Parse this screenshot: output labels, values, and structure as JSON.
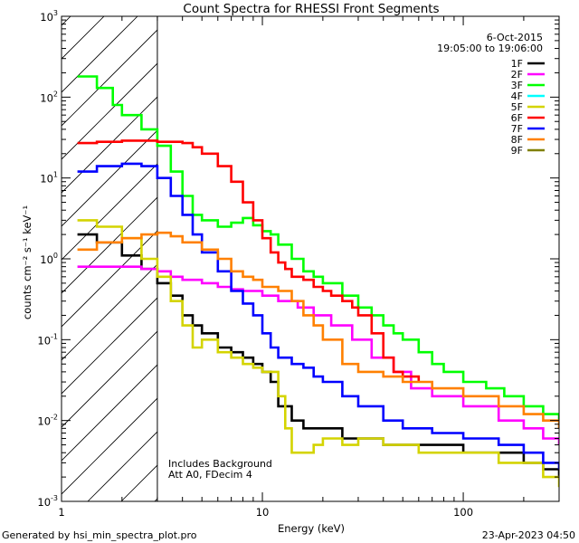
{
  "chart_data": {
    "type": "line",
    "title": "Count Spectra for RHESSI Front Segments",
    "xlabel": "Energy (keV)",
    "ylabel": "counts cm⁻² s⁻¹ keV⁻¹",
    "xscale": "log",
    "yscale": "log",
    "xlim": [
      1,
      300
    ],
    "ylim": [
      0.001,
      1000
    ],
    "x_tick_labels": [
      {
        "value": 1,
        "label": "1"
      },
      {
        "value": 10,
        "label": "10"
      },
      {
        "value": 100,
        "label": "100"
      }
    ],
    "y_tick_labels": [
      {
        "value": 0.001,
        "base": "10",
        "exp": "-3"
      },
      {
        "value": 0.01,
        "base": "10",
        "exp": "-2"
      },
      {
        "value": 0.1,
        "base": "10",
        "exp": "-1"
      },
      {
        "value": 1,
        "base": "10",
        "exp": "0"
      },
      {
        "value": 10,
        "base": "10",
        "exp": "1"
      },
      {
        "value": 100,
        "base": "10",
        "exp": "2"
      },
      {
        "value": 1000,
        "base": "10",
        "exp": "3"
      }
    ],
    "date": "6-Oct-2015",
    "time_range": "19:05:00 to 19:06:00",
    "hatched_region_max_keV": 3,
    "annotations": [
      "Includes Background",
      "Att A0, FDecim 4"
    ],
    "legend_position": "top-right",
    "series": [
      {
        "name": "1F",
        "color": "#000000",
        "points": [
          [
            1.2,
            2.0
          ],
          [
            1.5,
            1.6
          ],
          [
            2.0,
            1.1
          ],
          [
            2.5,
            0.75
          ],
          [
            3.0,
            0.5
          ],
          [
            3.5,
            0.35
          ],
          [
            4.0,
            0.2
          ],
          [
            4.5,
            0.15
          ],
          [
            5.0,
            0.12
          ],
          [
            6.0,
            0.08
          ],
          [
            7.0,
            0.07
          ],
          [
            8.0,
            0.06
          ],
          [
            9.0,
            0.05
          ],
          [
            10,
            0.04
          ],
          [
            11,
            0.03
          ],
          [
            12,
            0.015
          ],
          [
            14,
            0.01
          ],
          [
            16,
            0.008
          ],
          [
            20,
            0.008
          ],
          [
            25,
            0.006
          ],
          [
            30,
            0.006
          ],
          [
            40,
            0.005
          ],
          [
            50,
            0.005
          ],
          [
            70,
            0.005
          ],
          [
            100,
            0.004
          ],
          [
            150,
            0.004
          ],
          [
            200,
            0.003
          ],
          [
            250,
            0.0025
          ],
          [
            300,
            0.002
          ]
        ]
      },
      {
        "name": "2F",
        "color": "#ff00ff",
        "points": [
          [
            1.2,
            0.8
          ],
          [
            2.0,
            0.8
          ],
          [
            2.5,
            0.75
          ],
          [
            3.0,
            0.7
          ],
          [
            3.5,
            0.6
          ],
          [
            4.0,
            0.55
          ],
          [
            5.0,
            0.5
          ],
          [
            6.0,
            0.45
          ],
          [
            7.0,
            0.42
          ],
          [
            8.0,
            0.4
          ],
          [
            10,
            0.35
          ],
          [
            12,
            0.3
          ],
          [
            15,
            0.25
          ],
          [
            18,
            0.2
          ],
          [
            22,
            0.15
          ],
          [
            28,
            0.1
          ],
          [
            35,
            0.06
          ],
          [
            45,
            0.04
          ],
          [
            55,
            0.025
          ],
          [
            70,
            0.02
          ],
          [
            100,
            0.015
          ],
          [
            150,
            0.01
          ],
          [
            200,
            0.008
          ],
          [
            250,
            0.006
          ],
          [
            300,
            0.005
          ]
        ]
      },
      {
        "name": "3F",
        "color": "#00ff00",
        "points": [
          [
            1.2,
            180
          ],
          [
            1.5,
            130
          ],
          [
            1.8,
            80
          ],
          [
            2.0,
            60
          ],
          [
            2.5,
            40
          ],
          [
            3.0,
            25
          ],
          [
            3.5,
            12
          ],
          [
            4.0,
            6
          ],
          [
            4.5,
            3.5
          ],
          [
            5.0,
            3
          ],
          [
            6.0,
            2.5
          ],
          [
            7.0,
            2.8
          ],
          [
            8.0,
            3.2
          ],
          [
            9.0,
            2.6
          ],
          [
            10,
            2.2
          ],
          [
            11,
            2.0
          ],
          [
            12,
            1.5
          ],
          [
            14,
            1.0
          ],
          [
            16,
            0.7
          ],
          [
            18,
            0.6
          ],
          [
            20,
            0.5
          ],
          [
            25,
            0.35
          ],
          [
            30,
            0.25
          ],
          [
            35,
            0.2
          ],
          [
            40,
            0.15
          ],
          [
            45,
            0.12
          ],
          [
            50,
            0.1
          ],
          [
            60,
            0.07
          ],
          [
            70,
            0.05
          ],
          [
            80,
            0.04
          ],
          [
            100,
            0.03
          ],
          [
            130,
            0.025
          ],
          [
            160,
            0.02
          ],
          [
            200,
            0.015
          ],
          [
            250,
            0.012
          ],
          [
            300,
            0.01
          ]
        ]
      },
      {
        "name": "4F",
        "color": "#00ffff",
        "points": []
      },
      {
        "name": "5F",
        "color": "#d4d400",
        "points": [
          [
            1.2,
            3.0
          ],
          [
            1.5,
            2.5
          ],
          [
            2.0,
            1.8
          ],
          [
            2.5,
            1.0
          ],
          [
            3.0,
            0.6
          ],
          [
            3.5,
            0.3
          ],
          [
            4.0,
            0.15
          ],
          [
            4.5,
            0.08
          ],
          [
            5.0,
            0.1
          ],
          [
            6.0,
            0.07
          ],
          [
            7.0,
            0.06
          ],
          [
            8.0,
            0.05
          ],
          [
            9.0,
            0.045
          ],
          [
            10,
            0.04
          ],
          [
            12,
            0.02
          ],
          [
            13,
            0.008
          ],
          [
            14,
            0.004
          ],
          [
            16,
            0.004
          ],
          [
            18,
            0.005
          ],
          [
            20,
            0.006
          ],
          [
            25,
            0.005
          ],
          [
            30,
            0.006
          ],
          [
            40,
            0.005
          ],
          [
            50,
            0.005
          ],
          [
            60,
            0.004
          ],
          [
            80,
            0.004
          ],
          [
            100,
            0.004
          ],
          [
            150,
            0.003
          ],
          [
            200,
            0.003
          ],
          [
            250,
            0.002
          ],
          [
            300,
            0.0015
          ]
        ]
      },
      {
        "name": "6F",
        "color": "#ff0000",
        "points": [
          [
            1.2,
            27
          ],
          [
            1.5,
            28
          ],
          [
            2.0,
            29
          ],
          [
            2.5,
            29
          ],
          [
            3.0,
            28
          ],
          [
            3.5,
            28
          ],
          [
            4.0,
            27
          ],
          [
            4.5,
            24
          ],
          [
            5.0,
            20
          ],
          [
            6.0,
            14
          ],
          [
            7.0,
            9
          ],
          [
            8.0,
            5
          ],
          [
            9.0,
            3
          ],
          [
            10,
            1.8
          ],
          [
            11,
            1.2
          ],
          [
            12,
            0.9
          ],
          [
            13,
            0.75
          ],
          [
            14,
            0.6
          ],
          [
            16,
            0.55
          ],
          [
            18,
            0.45
          ],
          [
            20,
            0.4
          ],
          [
            22,
            0.35
          ],
          [
            25,
            0.3
          ],
          [
            28,
            0.25
          ],
          [
            30,
            0.2
          ],
          [
            35,
            0.12
          ],
          [
            40,
            0.06
          ],
          [
            45,
            0.04
          ],
          [
            50,
            0.035
          ],
          [
            60,
            0.03
          ]
        ]
      },
      {
        "name": "7F",
        "color": "#0000ff",
        "points": [
          [
            1.2,
            12
          ],
          [
            1.5,
            14
          ],
          [
            2.0,
            15
          ],
          [
            2.5,
            14
          ],
          [
            3.0,
            10
          ],
          [
            3.5,
            6
          ],
          [
            4.0,
            3.5
          ],
          [
            4.5,
            2.0
          ],
          [
            5.0,
            1.2
          ],
          [
            6.0,
            0.7
          ],
          [
            7.0,
            0.4
          ],
          [
            8.0,
            0.28
          ],
          [
            9.0,
            0.2
          ],
          [
            10,
            0.12
          ],
          [
            11,
            0.08
          ],
          [
            12,
            0.06
          ],
          [
            14,
            0.05
          ],
          [
            16,
            0.045
          ],
          [
            18,
            0.035
          ],
          [
            20,
            0.03
          ],
          [
            25,
            0.02
          ],
          [
            30,
            0.015
          ],
          [
            40,
            0.01
          ],
          [
            50,
            0.008
          ],
          [
            70,
            0.007
          ],
          [
            100,
            0.006
          ],
          [
            150,
            0.005
          ],
          [
            200,
            0.004
          ],
          [
            250,
            0.003
          ],
          [
            300,
            0.0025
          ]
        ]
      },
      {
        "name": "8F",
        "color": "#ff8000",
        "points": [
          [
            1.2,
            1.3
          ],
          [
            1.5,
            1.6
          ],
          [
            2.0,
            1.8
          ],
          [
            2.5,
            2.0
          ],
          [
            3.0,
            2.1
          ],
          [
            3.5,
            1.9
          ],
          [
            4.0,
            1.6
          ],
          [
            5.0,
            1.3
          ],
          [
            6.0,
            1.0
          ],
          [
            7.0,
            0.7
          ],
          [
            8.0,
            0.6
          ],
          [
            9.0,
            0.55
          ],
          [
            10,
            0.45
          ],
          [
            12,
            0.4
          ],
          [
            14,
            0.3
          ],
          [
            16,
            0.2
          ],
          [
            18,
            0.15
          ],
          [
            20,
            0.1
          ],
          [
            25,
            0.05
          ],
          [
            30,
            0.04
          ],
          [
            40,
            0.035
          ],
          [
            50,
            0.03
          ],
          [
            70,
            0.025
          ],
          [
            100,
            0.02
          ],
          [
            150,
            0.015
          ],
          [
            200,
            0.012
          ],
          [
            250,
            0.01
          ],
          [
            300,
            0.008
          ]
        ]
      },
      {
        "name": "9F",
        "color": "#808000",
        "points": []
      }
    ]
  },
  "footer": {
    "generated_by": "Generated by hsi_min_spectra_plot.pro",
    "timestamp": "23-Apr-2023 04:50"
  }
}
